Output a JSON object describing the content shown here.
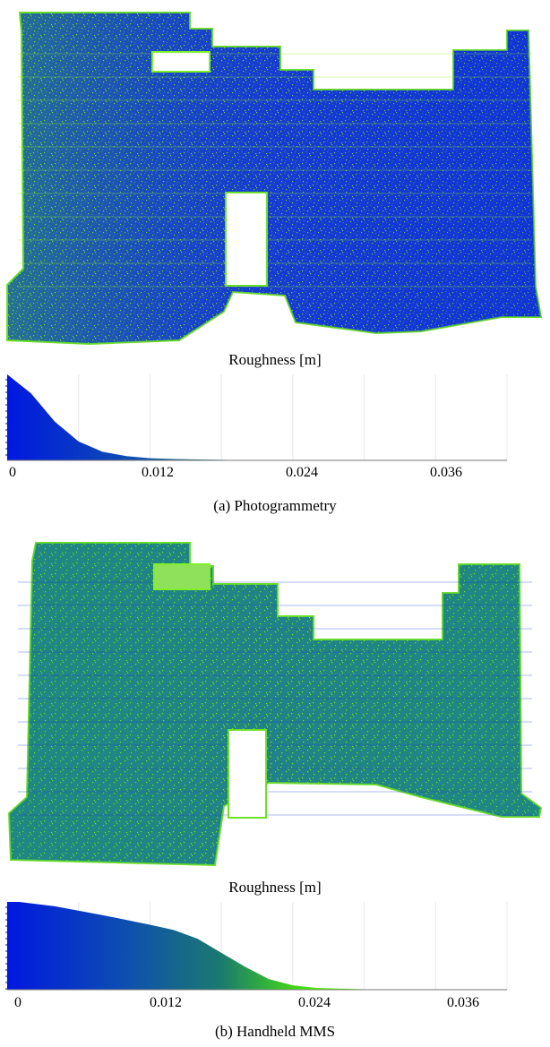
{
  "figure": {
    "panels": [
      {
        "id": "a",
        "scale_label": "Roughness [m]",
        "caption": "(a)  Photogrammetry",
        "ticks": [
          "0",
          "0.012",
          "0.024",
          "0.036"
        ]
      },
      {
        "id": "b",
        "scale_label": "Roughness [m]",
        "caption": "(b)  Handheld MMS",
        "ticks": [
          "0",
          "0.012",
          "0.024",
          "0.036"
        ]
      }
    ]
  },
  "colors": {
    "low": "#0018e0",
    "mid": "#1b7a6e",
    "high": "#4ef000",
    "peak": "#b8f000",
    "grid": "#e8e8e8"
  },
  "chart_data": [
    {
      "type": "area",
      "title": "",
      "xlabel": "Roughness [m]",
      "ylabel": "",
      "xlim": [
        0,
        0.042
      ],
      "x_ticks": [
        0,
        0.012,
        0.024,
        0.036
      ],
      "x": [
        0,
        0.002,
        0.004,
        0.006,
        0.008,
        0.01,
        0.012,
        0.014,
        0.016,
        0.018,
        0.02,
        0.024,
        0.03,
        0.036,
        0.042
      ],
      "values": [
        1.0,
        0.78,
        0.45,
        0.22,
        0.1,
        0.05,
        0.025,
        0.015,
        0.01,
        0.006,
        0.004,
        0.002,
        0.001,
        0.0005,
        0.0
      ],
      "grid": true
    },
    {
      "type": "area",
      "title": "",
      "xlabel": "Roughness [m]",
      "ylabel": "",
      "xlim": [
        0,
        0.042
      ],
      "x_ticks": [
        0,
        0.012,
        0.024,
        0.036
      ],
      "x": [
        0,
        0.001,
        0.004,
        0.008,
        0.012,
        0.014,
        0.016,
        0.018,
        0.02,
        0.022,
        0.024,
        0.026,
        0.03,
        0.036,
        0.04
      ],
      "values": [
        1.0,
        1.0,
        0.95,
        0.85,
        0.74,
        0.68,
        0.58,
        0.42,
        0.26,
        0.12,
        0.05,
        0.02,
        0.005,
        0.001,
        0.0
      ],
      "grid": true
    }
  ]
}
